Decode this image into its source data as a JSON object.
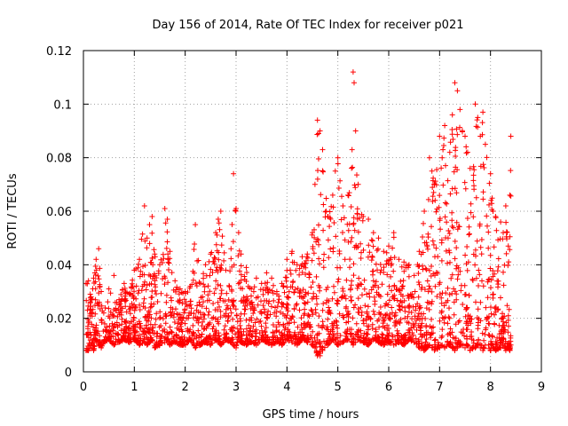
{
  "chart_data": {
    "type": "scatter",
    "title": "Day 156 of 2014, Rate Of TEC Index for receiver p021",
    "xlabel": "GPS time / hours",
    "ylabel": "ROTI / TECUs",
    "xlim": [
      0,
      9
    ],
    "ylim": [
      0,
      0.12
    ],
    "x_ticks": [
      0,
      1,
      2,
      3,
      4,
      5,
      6,
      7,
      8,
      9
    ],
    "x_tick_labels": [
      "0",
      "1",
      "2",
      "3",
      "4",
      "5",
      "6",
      "7",
      "8",
      "9"
    ],
    "y_ticks": [
      0,
      0.02,
      0.04,
      0.06,
      0.08,
      0.1,
      0.12
    ],
    "y_tick_labels": [
      "0",
      "0.02",
      "0.04",
      "0.06",
      "0.08",
      "0.1",
      "0.12"
    ],
    "grid": true,
    "marker": "+",
    "color": "#ff0000",
    "series": [
      {
        "name": "ROTI",
        "x": [
          0.05,
          0.1,
          0.15,
          0.2,
          0.25,
          0.3,
          0.35,
          0.4,
          0.5,
          0.6,
          0.7,
          0.8,
          0.9,
          1.0,
          1.1,
          1.2,
          1.25,
          1.3,
          1.35,
          1.4,
          1.5,
          1.6,
          1.65,
          1.7,
          1.8,
          1.9,
          2.0,
          2.1,
          2.2,
          2.3,
          2.4,
          2.5,
          2.6,
          2.65,
          2.7,
          2.8,
          2.9,
          2.95,
          3.0,
          3.05,
          3.1,
          3.2,
          3.3,
          3.4,
          3.5,
          3.6,
          3.7,
          3.8,
          3.9,
          4.0,
          4.1,
          4.2,
          4.3,
          4.4,
          4.5,
          4.55,
          4.6,
          4.62,
          4.65,
          4.7,
          4.8,
          4.9,
          4.95,
          5.0,
          5.1,
          5.2,
          5.28,
          5.3,
          5.32,
          5.35,
          5.4,
          5.5,
          5.6,
          5.7,
          5.8,
          5.9,
          6.0,
          6.1,
          6.2,
          6.3,
          6.4,
          6.5,
          6.6,
          6.7,
          6.8,
          6.85,
          6.9,
          7.0,
          7.05,
          7.1,
          7.2,
          7.25,
          7.3,
          7.35,
          7.4,
          7.5,
          7.55,
          7.6,
          7.7,
          7.75,
          7.8,
          7.85,
          7.9,
          8.0,
          8.05,
          8.1,
          8.2,
          8.25,
          8.3,
          8.35,
          8.38,
          8.4
        ],
        "y": [
          0.033,
          0.034,
          0.028,
          0.035,
          0.042,
          0.046,
          0.03,
          0.022,
          0.031,
          0.036,
          0.027,
          0.033,
          0.029,
          0.038,
          0.042,
          0.062,
          0.05,
          0.055,
          0.058,
          0.044,
          0.04,
          0.061,
          0.057,
          0.045,
          0.034,
          0.031,
          0.03,
          0.032,
          0.055,
          0.033,
          0.04,
          0.044,
          0.052,
          0.057,
          0.06,
          0.038,
          0.046,
          0.074,
          0.061,
          0.052,
          0.044,
          0.039,
          0.031,
          0.035,
          0.033,
          0.037,
          0.035,
          0.03,
          0.033,
          0.042,
          0.045,
          0.04,
          0.043,
          0.044,
          0.052,
          0.07,
          0.094,
          0.089,
          0.09,
          0.083,
          0.058,
          0.066,
          0.075,
          0.08,
          0.062,
          0.066,
          0.083,
          0.112,
          0.108,
          0.09,
          0.07,
          0.058,
          0.057,
          0.052,
          0.05,
          0.045,
          0.047,
          0.052,
          0.042,
          0.041,
          0.04,
          0.036,
          0.045,
          0.06,
          0.08,
          0.075,
          0.07,
          0.088,
          0.08,
          0.092,
          0.082,
          0.096,
          0.108,
          0.105,
          0.098,
          0.088,
          0.082,
          0.076,
          0.1,
          0.095,
          0.088,
          0.097,
          0.085,
          0.074,
          0.06,
          0.058,
          0.056,
          0.052,
          0.062,
          0.047,
          0.066,
          0.088
        ],
        "y_low": [
          0.008,
          0.008,
          0.01,
          0.008,
          0.012,
          0.01,
          0.009,
          0.011,
          0.012,
          0.01,
          0.011,
          0.012,
          0.011,
          0.012,
          0.01,
          0.011,
          0.01,
          0.011,
          0.012,
          0.009,
          0.01,
          0.011,
          0.012,
          0.01,
          0.011,
          0.01,
          0.01,
          0.012,
          0.009,
          0.01,
          0.011,
          0.01,
          0.012,
          0.011,
          0.01,
          0.012,
          0.011,
          0.01,
          0.009,
          0.012,
          0.011,
          0.01,
          0.011,
          0.01,
          0.012,
          0.011,
          0.01,
          0.011,
          0.01,
          0.012,
          0.011,
          0.01,
          0.012,
          0.011,
          0.01,
          0.009,
          0.006,
          0.007,
          0.006,
          0.008,
          0.01,
          0.012,
          0.011,
          0.01,
          0.011,
          0.012,
          0.011,
          0.01,
          0.012,
          0.011,
          0.012,
          0.011,
          0.01,
          0.012,
          0.011,
          0.01,
          0.011,
          0.01,
          0.011,
          0.01,
          0.012,
          0.011,
          0.009,
          0.008,
          0.01,
          0.009,
          0.008,
          0.009,
          0.01,
          0.009,
          0.01,
          0.009,
          0.008,
          0.009,
          0.01,
          0.009,
          0.01,
          0.008,
          0.009,
          0.01,
          0.009,
          0.008,
          0.01,
          0.008,
          0.009,
          0.008,
          0.009,
          0.01,
          0.008,
          0.009,
          0.008,
          0.01
        ]
      }
    ]
  }
}
